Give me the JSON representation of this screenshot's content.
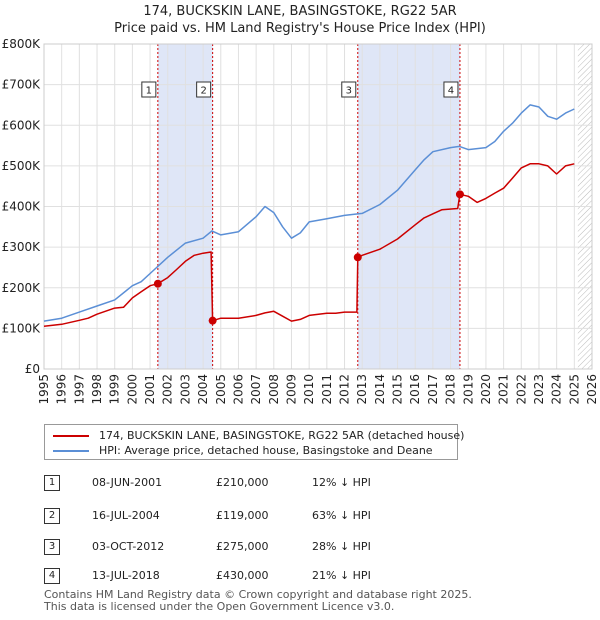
{
  "title_line1": "174, BUCKSKIN LANE, BASINGSTOKE, RG22 5AR",
  "title_line2": "Price paid vs. HM Land Registry's House Price Index (HPI)",
  "colors": {
    "property": "#cc0000",
    "hpi": "#5b8fd6",
    "shade": "#dfe6f7",
    "hatch": "#bbbbbb"
  },
  "legend": {
    "property_label": "174, BUCKSKIN LANE, BASINGSTOKE, RG22 5AR (detached house)",
    "hpi_label": "HPI: Average price, detached house, Basingstoke and Deane"
  },
  "transactions": [
    {
      "num": "1",
      "date": "08-JUN-2001",
      "price": "£210,000",
      "hpi": "12% ↓ HPI"
    },
    {
      "num": "2",
      "date": "16-JUL-2004",
      "price": "£119,000",
      "hpi": "63% ↓ HPI"
    },
    {
      "num": "3",
      "date": "03-OCT-2012",
      "price": "£275,000",
      "hpi": "28% ↓ HPI"
    },
    {
      "num": "4",
      "date": "13-JUL-2018",
      "price": "£430,000",
      "hpi": "21% ↓ HPI"
    }
  ],
  "footer_line1": "Contains HM Land Registry data © Crown copyright and database right 2025.",
  "footer_line2": "This data is licensed under the Open Government Licence v3.0.",
  "chart_data": {
    "type": "line",
    "xlim": [
      1995,
      2026
    ],
    "ylim": [
      0,
      800000
    ],
    "x_ticks": [
      "1995",
      "1996",
      "1997",
      "1998",
      "1999",
      "2000",
      "2001",
      "2002",
      "2003",
      "2004",
      "2005",
      "2006",
      "2007",
      "2008",
      "2009",
      "2010",
      "2011",
      "2012",
      "2013",
      "2014",
      "2015",
      "2016",
      "2017",
      "2018",
      "2019",
      "2020",
      "2021",
      "2022",
      "2023",
      "2024",
      "2025",
      "2026"
    ],
    "y_ticks": [
      {
        "value": 0,
        "label": "£0"
      },
      {
        "value": 100000,
        "label": "£100K"
      },
      {
        "value": 200000,
        "label": "£200K"
      },
      {
        "value": 300000,
        "label": "£300K"
      },
      {
        "value": 400000,
        "label": "£400K"
      },
      {
        "value": 500000,
        "label": "£500K"
      },
      {
        "value": 600000,
        "label": "£600K"
      },
      {
        "value": 700000,
        "label": "£700K"
      },
      {
        "value": 800000,
        "label": "£800K"
      }
    ],
    "grid": true,
    "shaded_periods": [
      [
        2001.44,
        2004.54
      ],
      [
        2012.75,
        2018.53
      ]
    ],
    "forecast_hatch_from": 2025.2,
    "series": [
      {
        "name": "174, BUCKSKIN LANE, BASINGSTOKE, RG22 5AR (detached house)",
        "points": [
          [
            1995,
            105000
          ],
          [
            1996,
            110000
          ],
          [
            1997,
            120000
          ],
          [
            1997.5,
            125000
          ],
          [
            1998,
            135000
          ],
          [
            1999,
            150000
          ],
          [
            1999.5,
            152000
          ],
          [
            2000,
            175000
          ],
          [
            2000.5,
            190000
          ],
          [
            2001,
            205000
          ],
          [
            2001.44,
            210000
          ],
          [
            2002,
            225000
          ],
          [
            2002.5,
            245000
          ],
          [
            2003,
            265000
          ],
          [
            2003.5,
            280000
          ],
          [
            2004,
            285000
          ],
          [
            2004.45,
            288000
          ],
          [
            2004.54,
            119000
          ],
          [
            2005,
            125000
          ],
          [
            2006,
            125000
          ],
          [
            2007,
            132000
          ],
          [
            2007.5,
            138000
          ],
          [
            2008,
            142000
          ],
          [
            2008.5,
            130000
          ],
          [
            2009,
            118000
          ],
          [
            2009.5,
            122000
          ],
          [
            2010,
            132000
          ],
          [
            2011,
            137000
          ],
          [
            2011.5,
            137000
          ],
          [
            2012,
            140000
          ],
          [
            2012.7,
            140000
          ],
          [
            2012.75,
            275000
          ],
          [
            2013,
            280000
          ],
          [
            2014,
            295000
          ],
          [
            2015,
            320000
          ],
          [
            2016,
            355000
          ],
          [
            2016.5,
            372000
          ],
          [
            2017,
            382000
          ],
          [
            2017.5,
            392000
          ],
          [
            2018.4,
            395000
          ],
          [
            2018.53,
            430000
          ],
          [
            2019,
            425000
          ],
          [
            2019.5,
            410000
          ],
          [
            2020,
            420000
          ],
          [
            2020.5,
            433000
          ],
          [
            2021,
            445000
          ],
          [
            2021.5,
            470000
          ],
          [
            2022,
            495000
          ],
          [
            2022.5,
            505000
          ],
          [
            2023,
            505000
          ],
          [
            2023.5,
            500000
          ],
          [
            2024,
            480000
          ],
          [
            2024.5,
            500000
          ],
          [
            2025,
            505000
          ]
        ]
      },
      {
        "name": "HPI: Average price, detached house, Basingstoke and Deane",
        "points": [
          [
            1995,
            118000
          ],
          [
            1996,
            125000
          ],
          [
            1997,
            140000
          ],
          [
            1998,
            155000
          ],
          [
            1999,
            170000
          ],
          [
            2000,
            205000
          ],
          [
            2000.5,
            215000
          ],
          [
            2001,
            235000
          ],
          [
            2002,
            275000
          ],
          [
            2003,
            310000
          ],
          [
            2004,
            322000
          ],
          [
            2004.5,
            340000
          ],
          [
            2005,
            330000
          ],
          [
            2006,
            338000
          ],
          [
            2007,
            375000
          ],
          [
            2007.5,
            400000
          ],
          [
            2008,
            385000
          ],
          [
            2008.5,
            350000
          ],
          [
            2009,
            322000
          ],
          [
            2009.5,
            335000
          ],
          [
            2010,
            362000
          ],
          [
            2011,
            370000
          ],
          [
            2012,
            378000
          ],
          [
            2013,
            383000
          ],
          [
            2014,
            405000
          ],
          [
            2015,
            440000
          ],
          [
            2016,
            490000
          ],
          [
            2016.5,
            515000
          ],
          [
            2017,
            535000
          ],
          [
            2018,
            545000
          ],
          [
            2018.5,
            548000
          ],
          [
            2019,
            540000
          ],
          [
            2020,
            545000
          ],
          [
            2020.5,
            560000
          ],
          [
            2021,
            585000
          ],
          [
            2021.5,
            605000
          ],
          [
            2022,
            630000
          ],
          [
            2022.5,
            650000
          ],
          [
            2023,
            645000
          ],
          [
            2023.5,
            622000
          ],
          [
            2024,
            615000
          ],
          [
            2024.5,
            630000
          ],
          [
            2025,
            640000
          ]
        ]
      }
    ],
    "markers": [
      {
        "label": "1",
        "x": 2001.44,
        "y": 210000
      },
      {
        "label": "2",
        "x": 2004.54,
        "y": 119000
      },
      {
        "label": "3",
        "x": 2012.75,
        "y": 275000
      },
      {
        "label": "4",
        "x": 2018.53,
        "y": 430000
      }
    ]
  }
}
